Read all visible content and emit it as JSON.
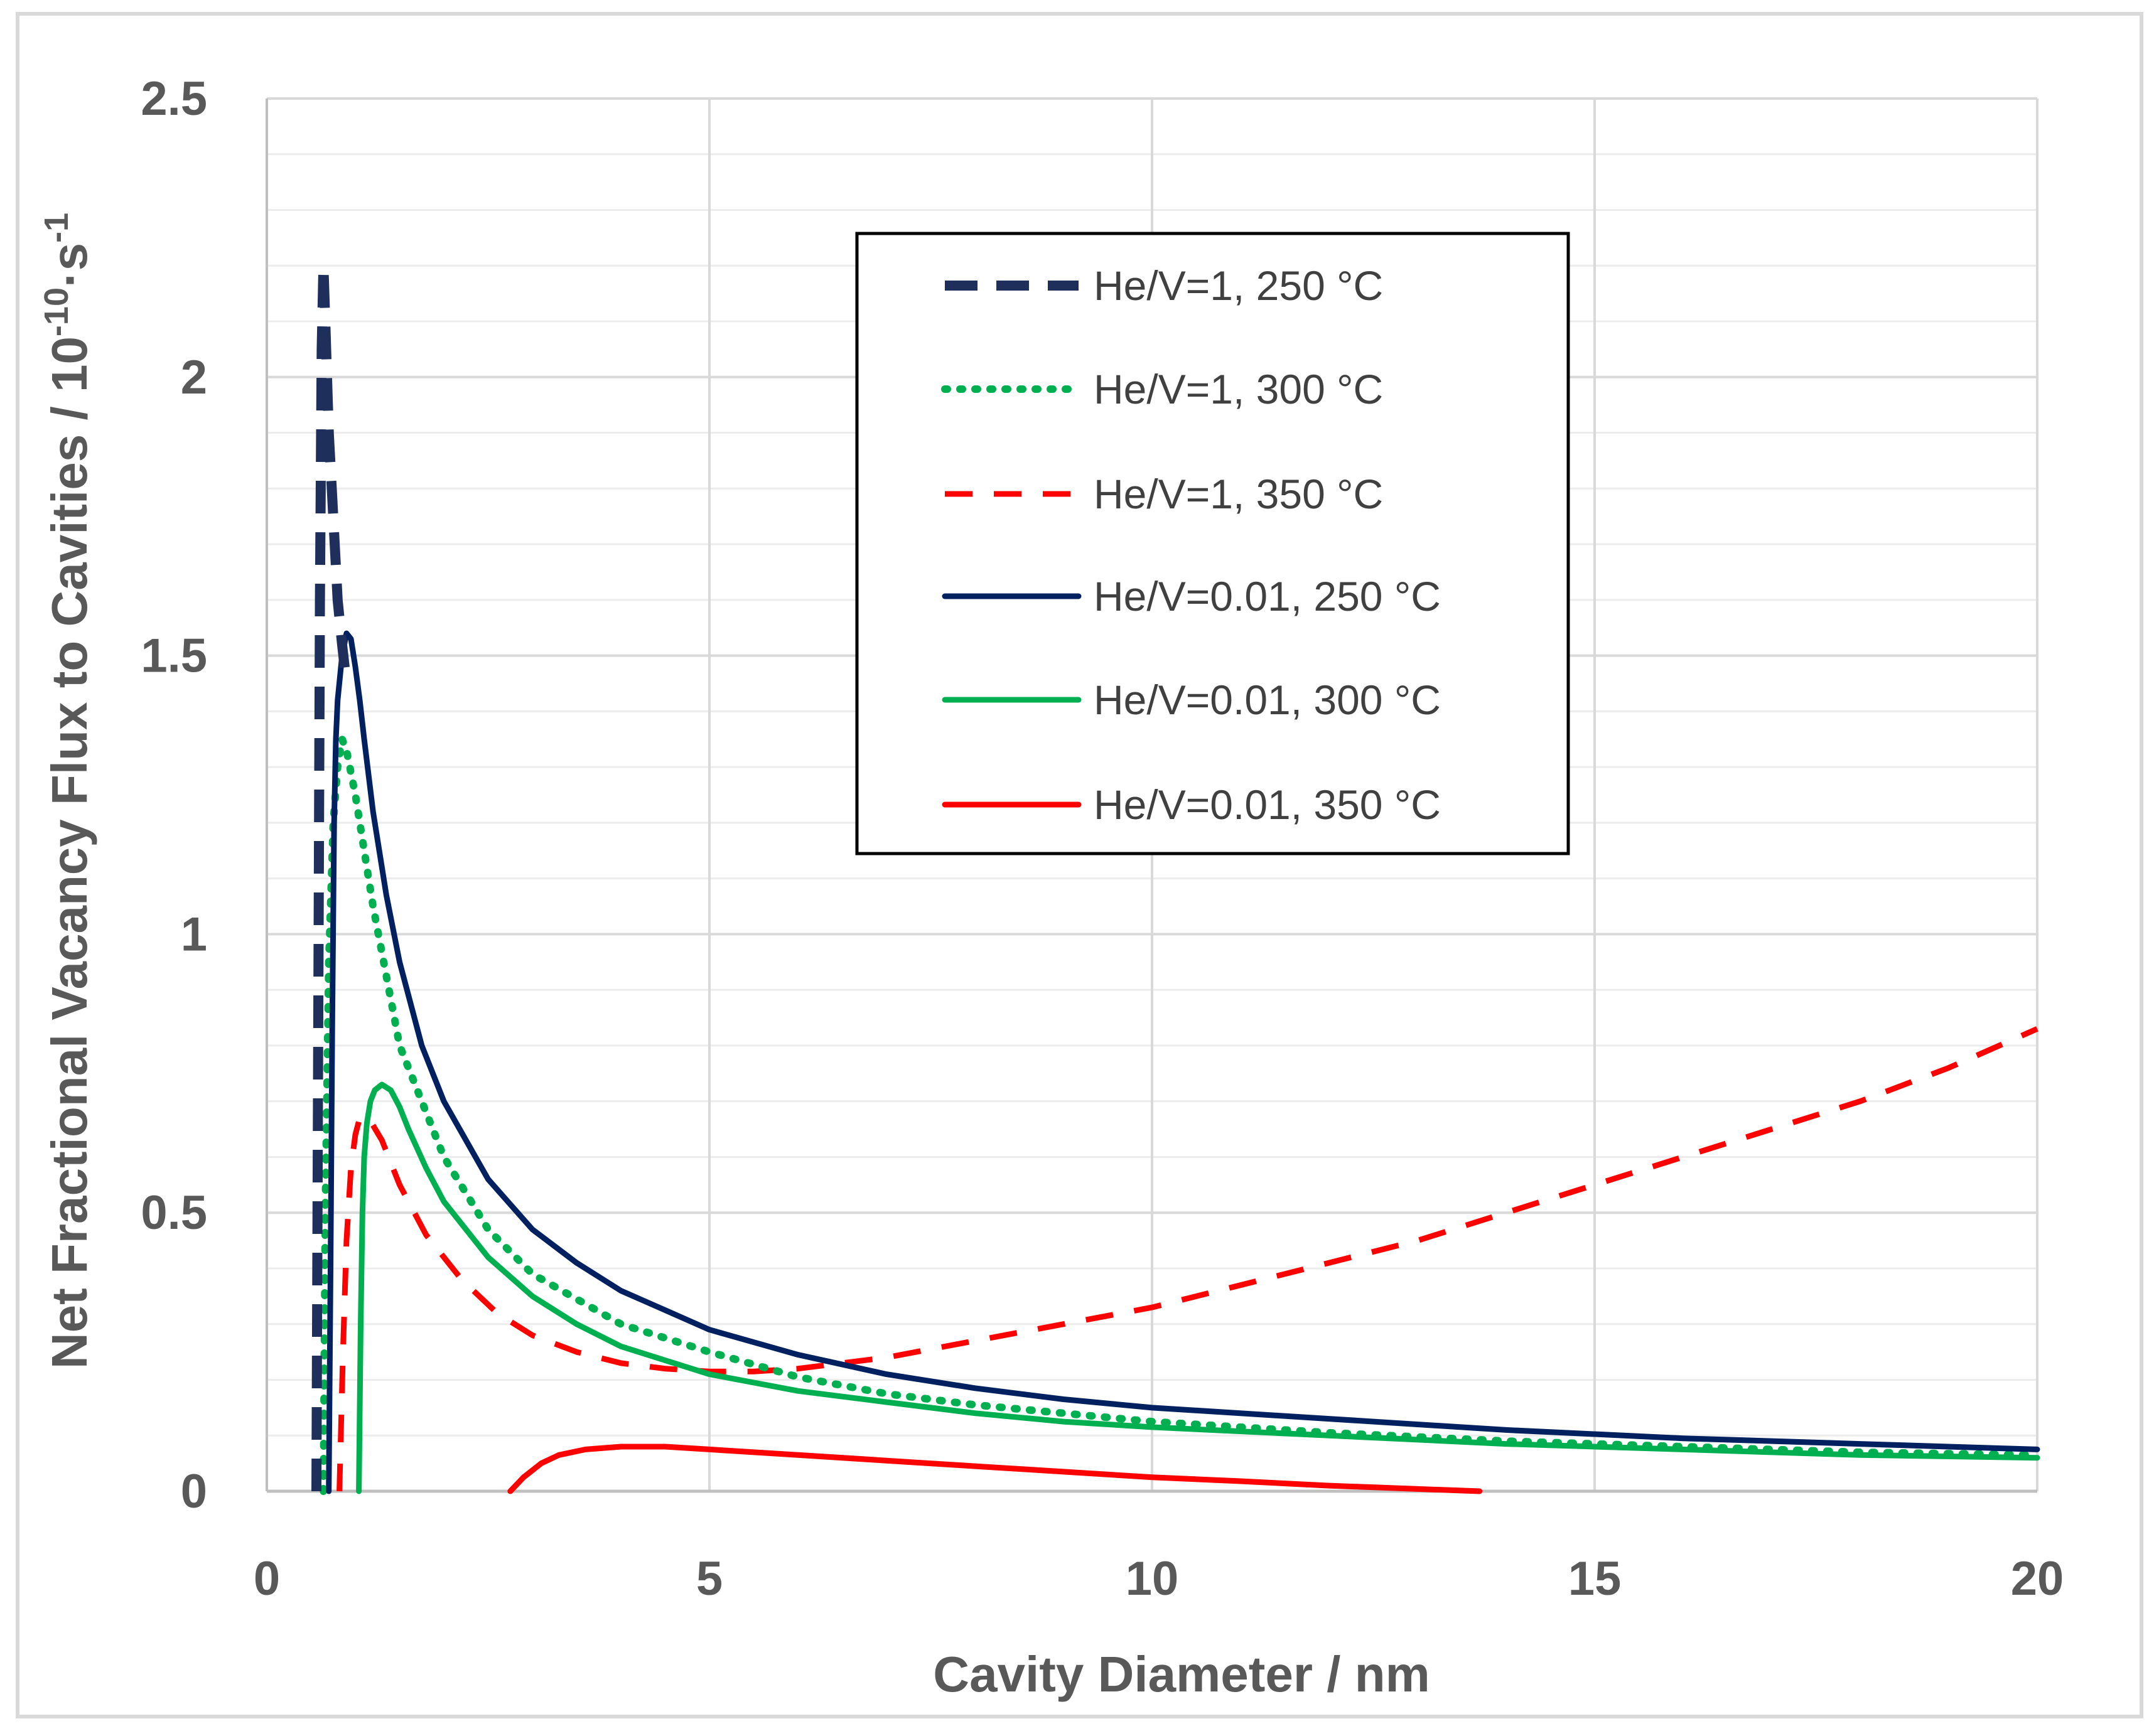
{
  "chart_data": {
    "type": "line",
    "title": "",
    "xlabel": "Cavity Diameter / nm",
    "ylabel_main": "Net Fractional Vacancy Flux to Cavities / 10",
    "ylabel_exp1": "-10",
    "ylabel_mid": "·s",
    "ylabel_exp2": "-1",
    "xlim": [
      0,
      20
    ],
    "ylim": [
      0,
      2.5
    ],
    "x_ticks": [
      0,
      5,
      10,
      15,
      20
    ],
    "x_tick_labels": [
      "0",
      "5",
      "10",
      "15",
      "20"
    ],
    "y_ticks": [
      0,
      0.5,
      1,
      1.5,
      2,
      2.5
    ],
    "y_tick_labels": [
      "0",
      "0.5",
      "1",
      "1.5",
      "2",
      "2.5"
    ],
    "grid": true,
    "legend_position": "top-center",
    "series": [
      {
        "name": "He/V=1, 250 °C",
        "color": "#1f2f5c",
        "style": "dash-long",
        "x": [
          0.56,
          0.58,
          0.6,
          0.62,
          0.64,
          0.66,
          0.7,
          0.75,
          0.8,
          0.85,
          0.9
        ],
        "y": [
          0,
          0.8,
          1.6,
          2.05,
          2.2,
          2.1,
          1.9,
          1.75,
          1.6,
          1.52,
          1.45
        ]
      },
      {
        "name": "He/V=1, 300 °C",
        "color": "#00b050",
        "style": "dot",
        "x": [
          0.64,
          0.66,
          0.7,
          0.75,
          0.8,
          0.85,
          0.9,
          1.0,
          1.2,
          1.5,
          2.0,
          2.5,
          3,
          4,
          5,
          6,
          7,
          8,
          10,
          12,
          14,
          16,
          18,
          20
        ],
        "y": [
          0,
          0.5,
          0.95,
          1.2,
          1.3,
          1.35,
          1.33,
          1.25,
          1.05,
          0.8,
          0.6,
          0.47,
          0.39,
          0.3,
          0.25,
          0.205,
          0.175,
          0.155,
          0.125,
          0.105,
          0.09,
          0.08,
          0.07,
          0.065
        ]
      },
      {
        "name": "He/V=1, 350 °C",
        "color": "#ff0000",
        "style": "dash",
        "x": [
          0.82,
          0.86,
          0.9,
          0.95,
          1.0,
          1.05,
          1.15,
          1.3,
          1.5,
          1.8,
          2.2,
          2.6,
          3,
          3.5,
          4,
          4.5,
          5,
          5.5,
          6,
          7,
          8,
          9,
          10,
          11,
          12,
          13,
          14,
          15,
          16,
          17,
          18,
          19,
          20
        ],
        "y": [
          0,
          0.25,
          0.45,
          0.58,
          0.64,
          0.67,
          0.67,
          0.63,
          0.55,
          0.46,
          0.38,
          0.32,
          0.28,
          0.25,
          0.23,
          0.22,
          0.215,
          0.215,
          0.22,
          0.24,
          0.27,
          0.3,
          0.33,
          0.37,
          0.41,
          0.45,
          0.5,
          0.55,
          0.6,
          0.65,
          0.7,
          0.76,
          0.83
        ]
      },
      {
        "name": "He/V=0.01, 250 °C",
        "color": "#002060",
        "style": "solid",
        "x": [
          0.7,
          0.72,
          0.74,
          0.76,
          0.78,
          0.8,
          0.85,
          0.9,
          0.95,
          1.0,
          1.05,
          1.1,
          1.2,
          1.35,
          1.5,
          1.75,
          2.0,
          2.5,
          3,
          3.5,
          4,
          4.5,
          5,
          6,
          7,
          8,
          9,
          10,
          12,
          14,
          16,
          18,
          20
        ],
        "y": [
          0,
          0.4,
          0.85,
          1.2,
          1.35,
          1.42,
          1.5,
          1.54,
          1.53,
          1.48,
          1.42,
          1.35,
          1.22,
          1.07,
          0.95,
          0.8,
          0.7,
          0.56,
          0.47,
          0.41,
          0.36,
          0.325,
          0.29,
          0.245,
          0.21,
          0.185,
          0.165,
          0.15,
          0.13,
          0.11,
          0.095,
          0.085,
          0.075
        ]
      },
      {
        "name": "He/V=0.01, 300 °C",
        "color": "#00b050",
        "style": "solid",
        "x": [
          1.04,
          1.06,
          1.08,
          1.1,
          1.13,
          1.17,
          1.22,
          1.3,
          1.4,
          1.5,
          1.6,
          1.8,
          2.0,
          2.5,
          3,
          3.5,
          4,
          4.5,
          5,
          6,
          7,
          8,
          9,
          10,
          12,
          14,
          16,
          18,
          20
        ],
        "y": [
          0,
          0.3,
          0.5,
          0.6,
          0.66,
          0.7,
          0.72,
          0.73,
          0.72,
          0.69,
          0.65,
          0.58,
          0.52,
          0.42,
          0.35,
          0.3,
          0.26,
          0.235,
          0.21,
          0.18,
          0.16,
          0.14,
          0.125,
          0.115,
          0.1,
          0.085,
          0.075,
          0.065,
          0.06
        ]
      },
      {
        "name": "He/V=0.01, 350 °C",
        "color": "#ff0000",
        "style": "solid",
        "x": [
          2.75,
          2.9,
          3.1,
          3.3,
          3.6,
          4.0,
          4.5,
          5,
          6,
          7,
          8,
          9,
          10,
          11,
          12,
          13,
          13.7
        ],
        "y": [
          0,
          0.025,
          0.05,
          0.065,
          0.075,
          0.08,
          0.08,
          0.075,
          0.065,
          0.055,
          0.045,
          0.035,
          0.025,
          0.018,
          0.01,
          0.004,
          0
        ]
      }
    ]
  }
}
